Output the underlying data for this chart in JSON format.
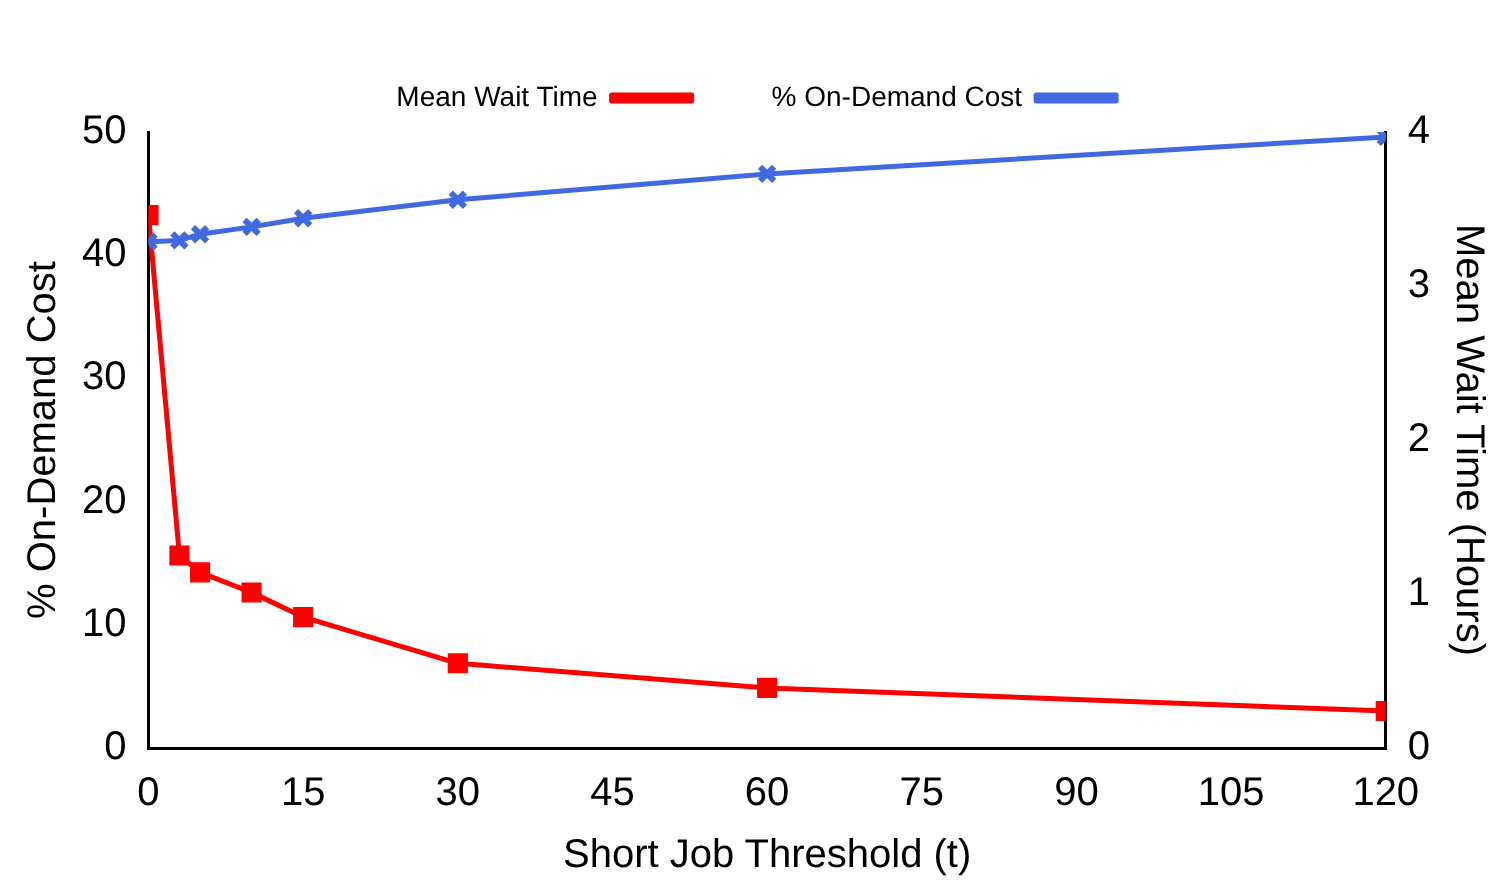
{
  "chart_data": {
    "type": "line",
    "xlabel": "Short Job Threshold (t)",
    "ylabel": "% On-Demand Cost",
    "y2label": "Mean Wait Time (Hours)",
    "x": [
      0,
      3,
      5,
      10,
      15,
      30,
      60,
      120
    ],
    "xlim": [
      0,
      120
    ],
    "xticks": [
      0,
      15,
      30,
      45,
      60,
      75,
      90,
      105,
      120
    ],
    "ylim": [
      0,
      50
    ],
    "yticks": [
      0,
      10,
      20,
      30,
      40,
      50
    ],
    "y2lim": [
      0,
      4
    ],
    "y2ticks": [
      0,
      1,
      2,
      3,
      4
    ],
    "series": [
      {
        "name": "% On-Demand Cost",
        "color": "#4169e1",
        "marker": "cross",
        "values": [
          41.1,
          41.2,
          41.7,
          42.3,
          43.0,
          44.5,
          46.6,
          49.6
        ]
      },
      {
        "name": "Mean Wait Time",
        "color": "#ff0000",
        "marker": "square",
        "axis": "y2",
        "values": [
          3.46,
          1.25,
          1.14,
          1.01,
          0.85,
          0.55,
          0.39,
          0.24
        ]
      }
    ],
    "legend": "top",
    "grid": false,
    "line_style": "solid"
  }
}
